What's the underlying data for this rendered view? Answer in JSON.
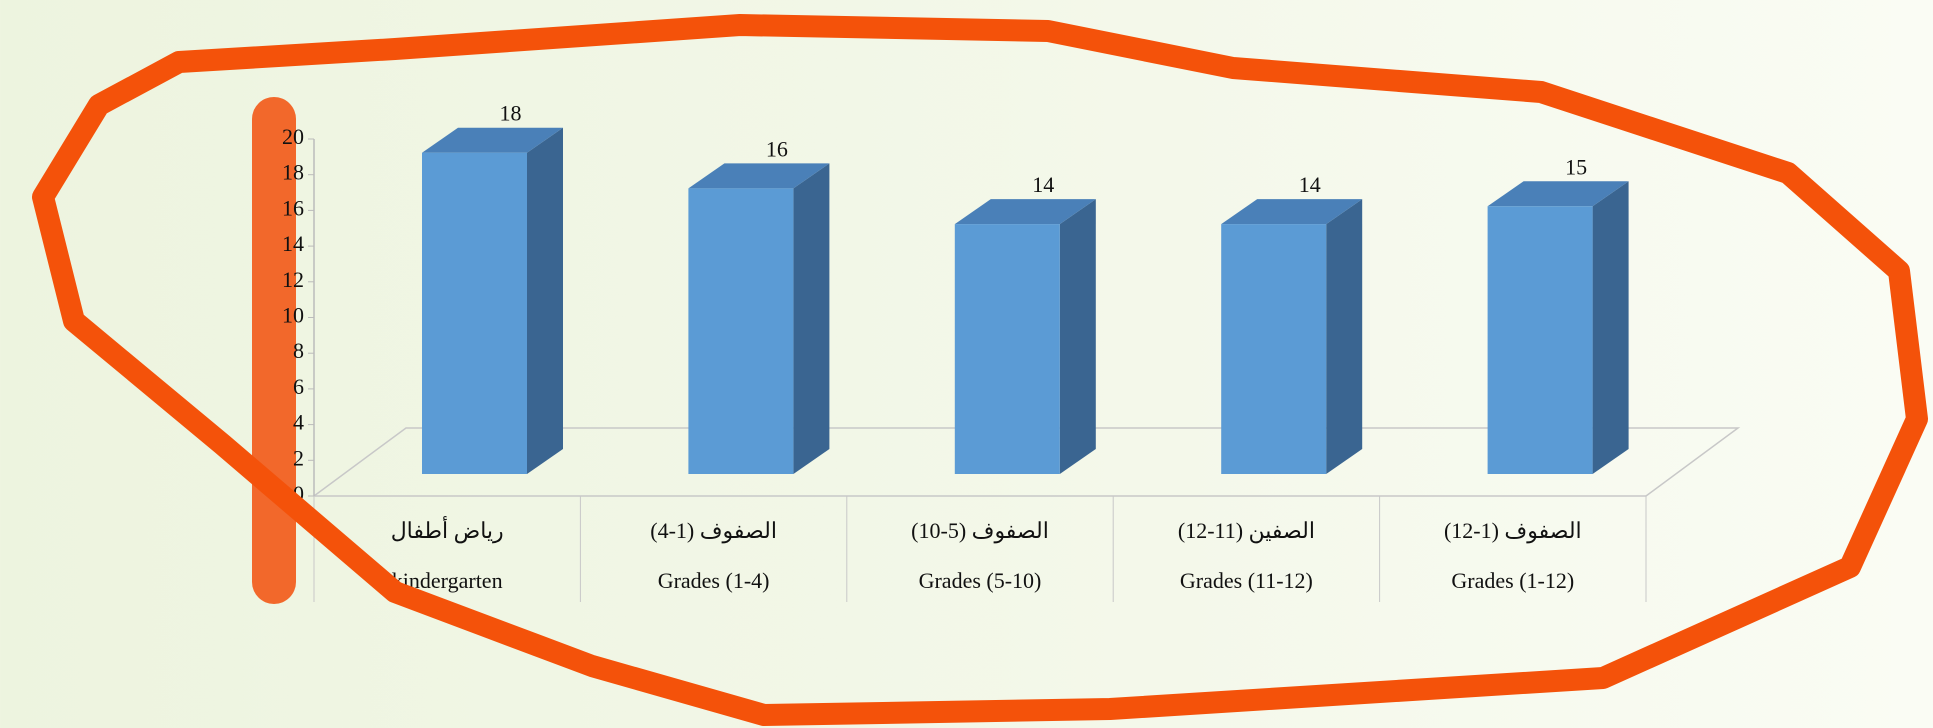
{
  "chart_data": {
    "type": "bar",
    "categories": [
      [
        "رياض أطفال",
        "kindergarten"
      ],
      [
        "الصفوف (1-4)",
        "Grades (1-4)"
      ],
      [
        "الصفوف (5-10)",
        "Grades (5-10)"
      ],
      [
        "الصفين (11-12)",
        "Grades (11-12)"
      ],
      [
        "الصفوف (1-12)",
        "Grades (1-12)"
      ]
    ],
    "values": [
      18,
      16,
      14,
      14,
      15
    ],
    "color": "#5b9bd5",
    "ylim": [
      0,
      20
    ],
    "yticks": [
      0,
      2,
      4,
      6,
      8,
      10,
      12,
      14,
      16,
      18,
      20
    ]
  }
}
